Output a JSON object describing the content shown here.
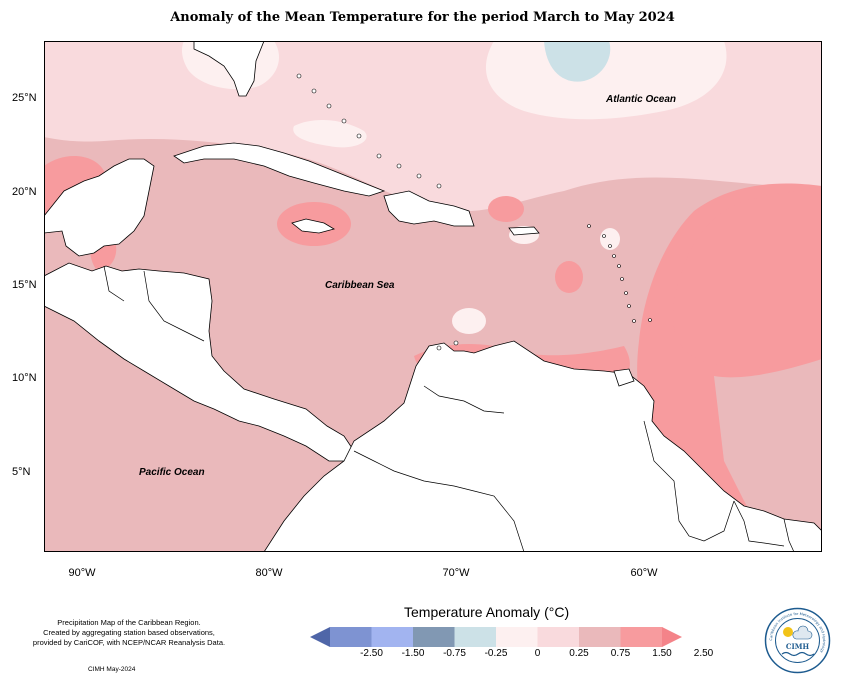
{
  "title": "Anomaly of the Mean Temperature for the period March to May 2024",
  "map": {
    "y_axis_labels": [
      "25°N",
      "20°N",
      "15°N",
      "10°N",
      "5°N"
    ],
    "x_axis_labels": [
      "90°W",
      "80°W",
      "70°W",
      "60°W"
    ],
    "places": {
      "atlantic": "Atlantic Ocean",
      "caribbean": "Caribbean Sea",
      "pacific": "Pacific Ocean"
    },
    "colors": {
      "neutral": "#fdf0f0",
      "light": "#f9dadd",
      "medium": "#eab9bb",
      "strong": "#f79b9e",
      "cool": "#cce1e7",
      "land": "#ffffff"
    }
  },
  "credits": {
    "line1": "Precipitation Map of the Caribbean Region.",
    "line2": "Created by aggregating station based observations,",
    "line3": "provided by CariCOF, with NCEP/NCAR Reanalysis Data.",
    "footer": "CIMH May-2024"
  },
  "legend": {
    "title": "Temperature Anomaly (°C)",
    "ticks": [
      "-2.50",
      "-1.50",
      "-0.75",
      "-0.25",
      "0",
      "0.25",
      "0.75",
      "1.50",
      "2.50"
    ],
    "colors": [
      "#4f66a8",
      "#7e93d2",
      "#a2b4f0",
      "#8198b3",
      "#cce1e7",
      "#fdf0f0",
      "#f9dadd",
      "#eab9bb",
      "#f79b9e",
      "#f48389"
    ]
  },
  "logo": {
    "label": "CIMH",
    "ring_text": "Caribbean Institute for Meteorology and Hydrology"
  }
}
